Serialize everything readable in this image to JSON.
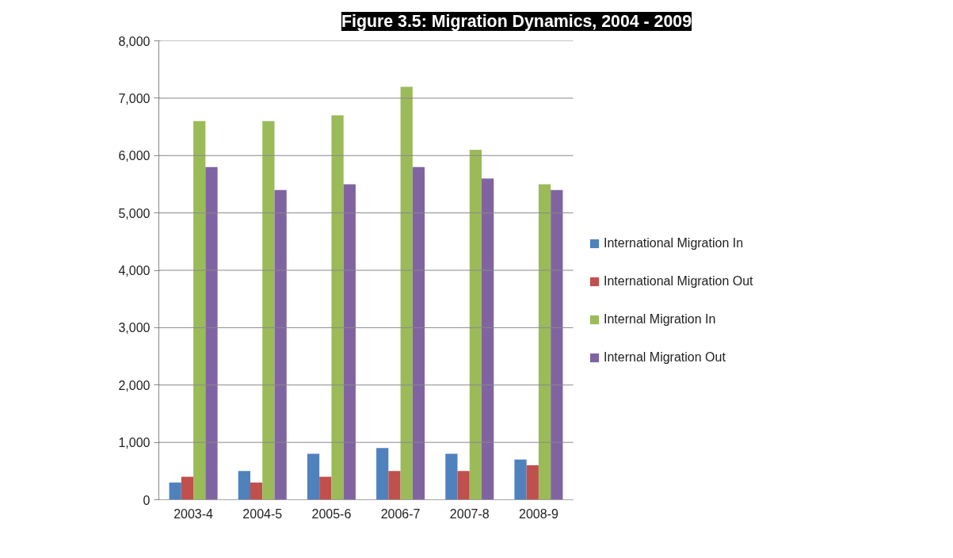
{
  "chart_data": {
    "type": "bar",
    "title": "Figure 3.5: Migration Dynamics, 2004 - 2009",
    "categories": [
      "2003-4",
      "2004-5",
      "2005-6",
      "2006-7",
      "2007-8",
      "2008-9"
    ],
    "series": [
      {
        "name": "International Migration In",
        "color": "#4f81bd",
        "values": [
          300,
          500,
          800,
          900,
          800,
          700
        ]
      },
      {
        "name": "International Migration Out",
        "color": "#c0504d",
        "values": [
          400,
          300,
          400,
          500,
          500,
          600
        ]
      },
      {
        "name": "Internal Migration In",
        "color": "#9bbb59",
        "values": [
          6600,
          6600,
          6700,
          7200,
          6100,
          5500
        ]
      },
      {
        "name": "Internal Migration Out",
        "color": "#8064a2",
        "values": [
          5800,
          5400,
          5500,
          5800,
          5600,
          5400
        ]
      }
    ],
    "ylim": [
      0,
      8000
    ],
    "yticks": [
      0,
      {
        "value": 1000,
        "label": "1,000"
      },
      {
        "value": 2000,
        "label": "2,000"
      },
      {
        "value": 3000,
        "label": "3,000"
      },
      {
        "value": 4000,
        "label": "4,000"
      },
      {
        "value": 5000,
        "label": "5,000"
      },
      {
        "value": 6000,
        "label": "6,000"
      },
      {
        "value": 7000,
        "label": "7,000"
      },
      {
        "value": 8000,
        "label": "8,000"
      }
    ],
    "grid": "y",
    "legend": "right"
  }
}
